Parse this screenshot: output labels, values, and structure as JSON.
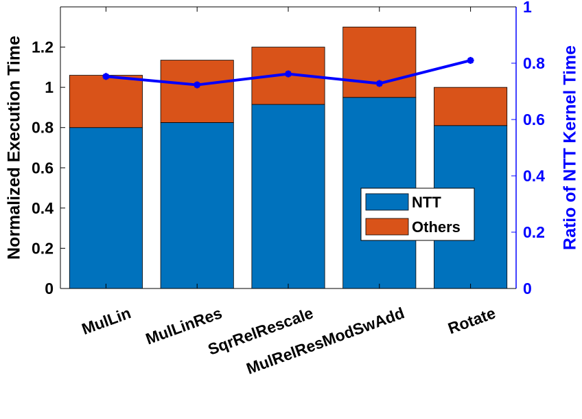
{
  "chart_data": {
    "type": "bar",
    "stacked": true,
    "categories": [
      "MulLin",
      "MulLinRes",
      "SqrRelRescale",
      "MulRelResModSwAdd",
      "Rotate"
    ],
    "series": [
      {
        "name": "NTT",
        "values": [
          0.8,
          0.825,
          0.915,
          0.95,
          0.81
        ]
      },
      {
        "name": "Others",
        "values": [
          0.26,
          0.31,
          0.285,
          0.35,
          0.19
        ]
      }
    ],
    "line_series": {
      "axis": "right",
      "values": [
        0.753,
        0.723,
        0.762,
        0.728,
        0.81
      ]
    },
    "ylabel": "Normalized Execution Time",
    "ylabel_right": "Ratio of NTT Kernel Time",
    "ylim": [
      0,
      1.4
    ],
    "ylim_right": [
      0,
      1
    ],
    "yticks": [
      0,
      0.2,
      0.4,
      0.6,
      0.8,
      1,
      1.2
    ],
    "ytick_labels": [
      "0",
      "0.2",
      "0.4",
      "0.6",
      "0.8",
      "1",
      "1.2"
    ],
    "yticks_right": [
      0,
      0.2,
      0.4,
      0.6,
      0.8,
      1
    ],
    "ytick_labels_right": [
      "0",
      "0.2",
      "0.4",
      "0.6",
      "0.8",
      "1"
    ],
    "legend_position": "inside-right",
    "grid": false,
    "colors": {
      "NTT": "#0072BD",
      "Others": "#D95319",
      "line": "#0000FF",
      "right_axis": "#0000FF",
      "left_axis": "#000000"
    }
  }
}
